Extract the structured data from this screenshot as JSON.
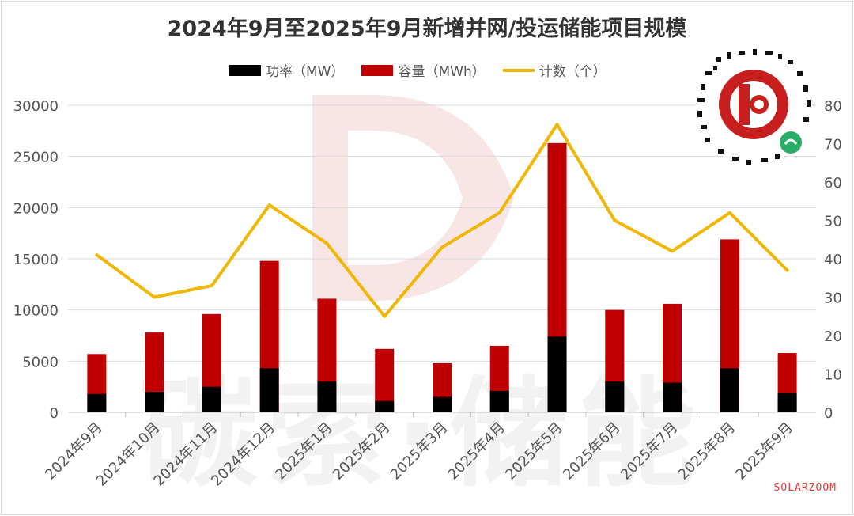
{
  "colors": {
    "power": "#000000",
    "capacity": "#c00000",
    "count": "#f2b705",
    "watermark": "#f6dede"
  },
  "chart_data": {
    "type": "bar",
    "title": "2024年9月至2025年9月新增并网/投运储能项目规模",
    "categories": [
      "2024年9月",
      "2024年10月",
      "2024年11月",
      "2024年12月",
      "2025年1月",
      "2025年2月",
      "2025年3月",
      "2025年4月",
      "2025年5月",
      "2025年6月",
      "2025年7月",
      "2025年8月",
      "2025年9月"
    ],
    "series": [
      {
        "name": "功率（MW）",
        "type": "bar",
        "axis": "left",
        "values": [
          1800,
          2000,
          2500,
          4300,
          3000,
          1100,
          1500,
          2100,
          7400,
          3000,
          2900,
          4300,
          1900
        ]
      },
      {
        "name": "容量（MWh）",
        "type": "bar",
        "axis": "left",
        "values": [
          5700,
          7800,
          9600,
          14800,
          11100,
          6200,
          4800,
          6500,
          26300,
          10000,
          10600,
          16900,
          5800
        ]
      },
      {
        "name": "计数（个）",
        "type": "line",
        "axis": "right",
        "values": [
          41,
          30,
          33,
          54,
          44,
          25,
          43,
          52,
          75,
          50,
          42,
          52,
          37
        ]
      }
    ],
    "y_left": {
      "min": 0,
      "max": 30000,
      "ticks": [
        0,
        5000,
        10000,
        15000,
        20000,
        25000,
        30000
      ]
    },
    "y_right": {
      "min": 0,
      "max": 80,
      "ticks": [
        0,
        10,
        20,
        30,
        40,
        50,
        60,
        70,
        80
      ]
    },
    "legend_position": "top",
    "grid": true,
    "watermark": "碳索·储能",
    "source": "SOLARZOOM"
  }
}
